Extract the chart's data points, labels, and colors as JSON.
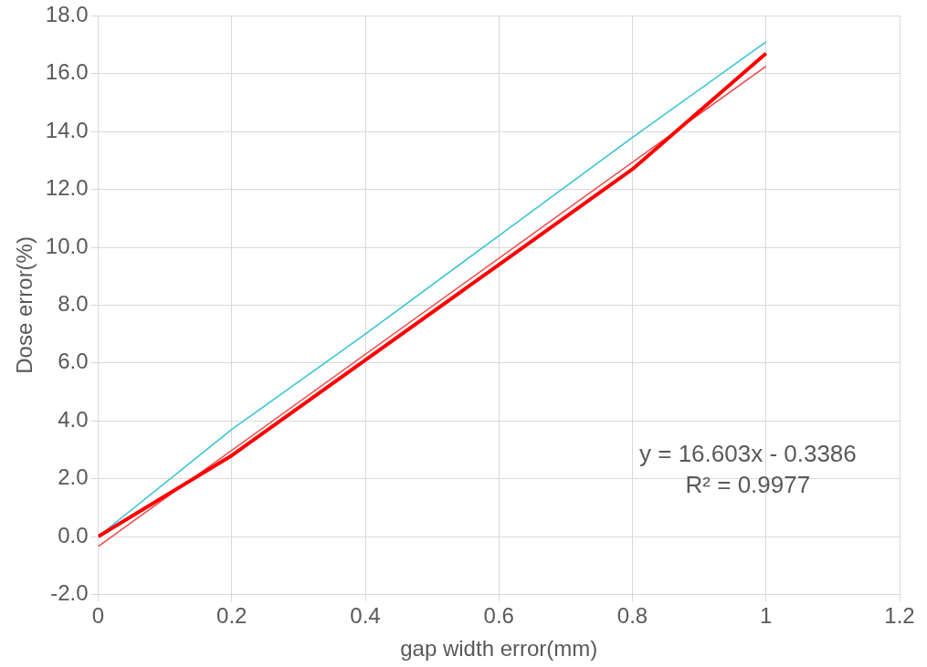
{
  "chart_data": {
    "type": "line",
    "xlabel": "gap width error(mm)",
    "ylabel": "Dose error(%)",
    "x": [
      0,
      0.2,
      0.4,
      0.6,
      0.8,
      1
    ],
    "series": [
      {
        "color": "#ff0000",
        "values": [
          0,
          2.8,
          6.1,
          9.4,
          12.7,
          16.7
        ]
      },
      {
        "color": "#33c4d0",
        "values": [
          0,
          3.7,
          7.0,
          10.4,
          13.8,
          17.1
        ]
      },
      {
        "color": "#f04848",
        "x": [
          0,
          1
        ],
        "values": [
          -0.34,
          16.26
        ]
      }
    ],
    "xlim": [
      0,
      1.2
    ],
    "xticks": [
      0,
      0.2,
      0.4,
      0.6,
      0.8,
      1,
      1.2
    ],
    "ylim": [
      -2,
      18
    ],
    "yticks": [
      {
        "value": -2,
        "label": "-2.0"
      },
      {
        "value": 0,
        "label": "0.0"
      },
      {
        "value": 2,
        "label": "2.0"
      },
      {
        "value": 4,
        "label": "4.0"
      },
      {
        "value": 6,
        "label": "6.0"
      },
      {
        "value": 8,
        "label": "8.0"
      },
      {
        "value": 10,
        "label": "10.0"
      },
      {
        "value": 12,
        "label": "12.0"
      },
      {
        "value": 14,
        "label": "14.0"
      },
      {
        "value": 16,
        "label": "16.0"
      },
      {
        "value": 18,
        "label": "18.0"
      }
    ],
    "grid": true,
    "marker": "none",
    "line_style": "solid",
    "annotations": [
      "y = 16.603x - 0.3386",
      "R² = 0.9977"
    ]
  }
}
